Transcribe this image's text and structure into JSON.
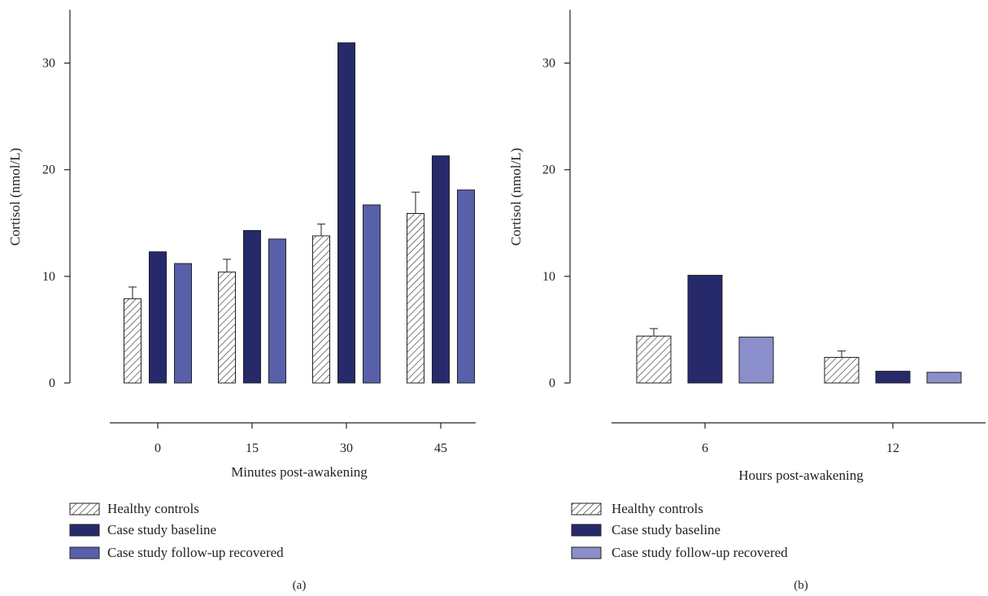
{
  "chart_data": [
    {
      "type": "bar",
      "panel_label": "(a)",
      "xlabel": "Minutes post-awakening",
      "ylabel": "Cortisol (nmol/L)",
      "ylim": [
        0,
        35
      ],
      "yticks": [
        0,
        10,
        20,
        30
      ],
      "categories": [
        "0",
        "15",
        "30",
        "45"
      ],
      "series": [
        {
          "name": "Healthy controls",
          "values": [
            7.9,
            10.4,
            13.8,
            15.9
          ],
          "errors": [
            1.1,
            1.2,
            1.1,
            2.0
          ],
          "pattern": "hatch",
          "color": "#ffffff"
        },
        {
          "name": "Case study baseline",
          "values": [
            12.3,
            14.3,
            31.9,
            21.3
          ],
          "color": "#262a6b"
        },
        {
          "name": "Case study follow-up recovered",
          "values": [
            11.2,
            13.5,
            16.7,
            18.1
          ],
          "color": "#5860aa"
        }
      ],
      "grid": false,
      "legend": "bottom-left"
    },
    {
      "type": "bar",
      "panel_label": "(b)",
      "xlabel": "Hours post-awakening",
      "ylabel": "Cortisol (nmol/L)",
      "ylim": [
        0,
        35
      ],
      "yticks": [
        0,
        10,
        20,
        30
      ],
      "categories": [
        "6",
        "12"
      ],
      "series": [
        {
          "name": "Healthy controls",
          "values": [
            4.4,
            2.4
          ],
          "errors": [
            0.7,
            0.6
          ],
          "pattern": "hatch",
          "color": "#ffffff"
        },
        {
          "name": "Case study baseline",
          "values": [
            10.1,
            1.1
          ],
          "color": "#262a6b"
        },
        {
          "name": "Case study follow-up recovered",
          "values": [
            4.3,
            1.0
          ],
          "color": "#8a8fcb"
        }
      ],
      "grid": false,
      "legend": "bottom-left"
    }
  ]
}
